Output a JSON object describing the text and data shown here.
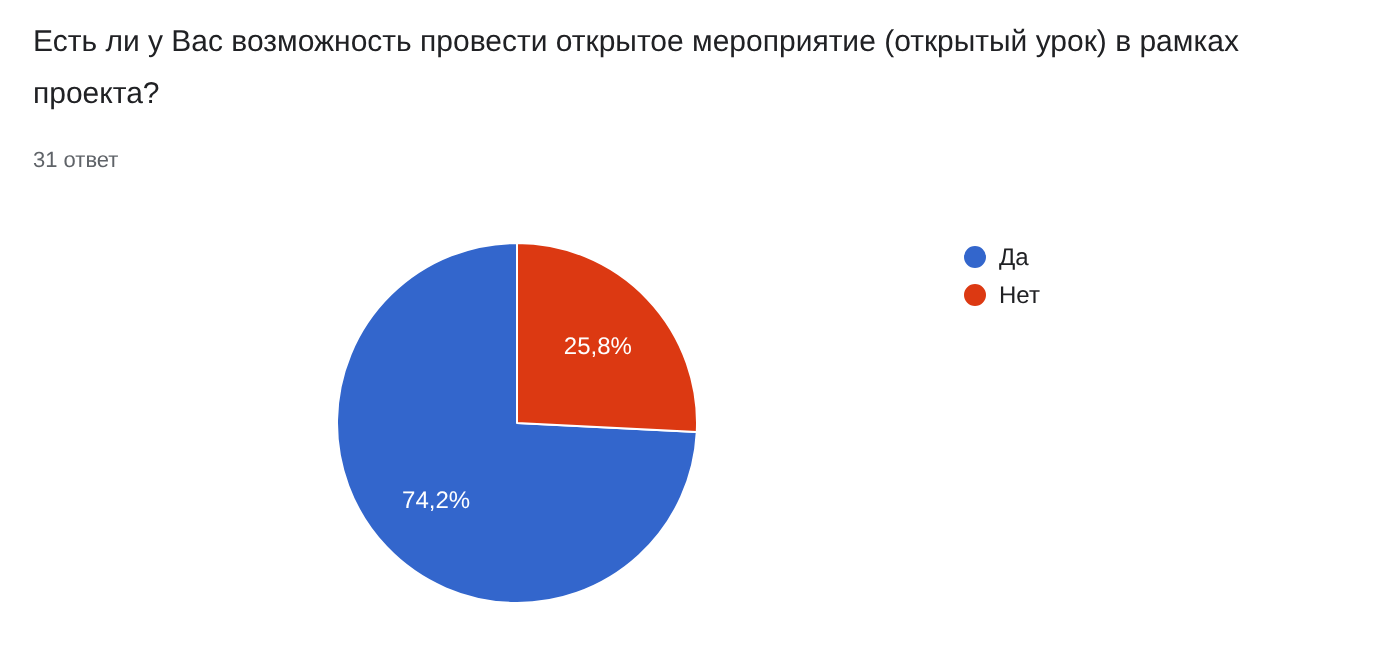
{
  "chart_data": {
    "type": "pie",
    "title": "Есть ли у Вас возможность провести открытое мероприятие (открытый урок) в рамках проекта?",
    "subtitle": "31 ответ",
    "categories": [
      "Да",
      "Нет"
    ],
    "values": [
      74.2,
      25.8
    ],
    "colors": [
      "#3366cc",
      "#dc3912"
    ],
    "value_labels": [
      "74,2%",
      "25,8%"
    ],
    "legend": "right"
  }
}
